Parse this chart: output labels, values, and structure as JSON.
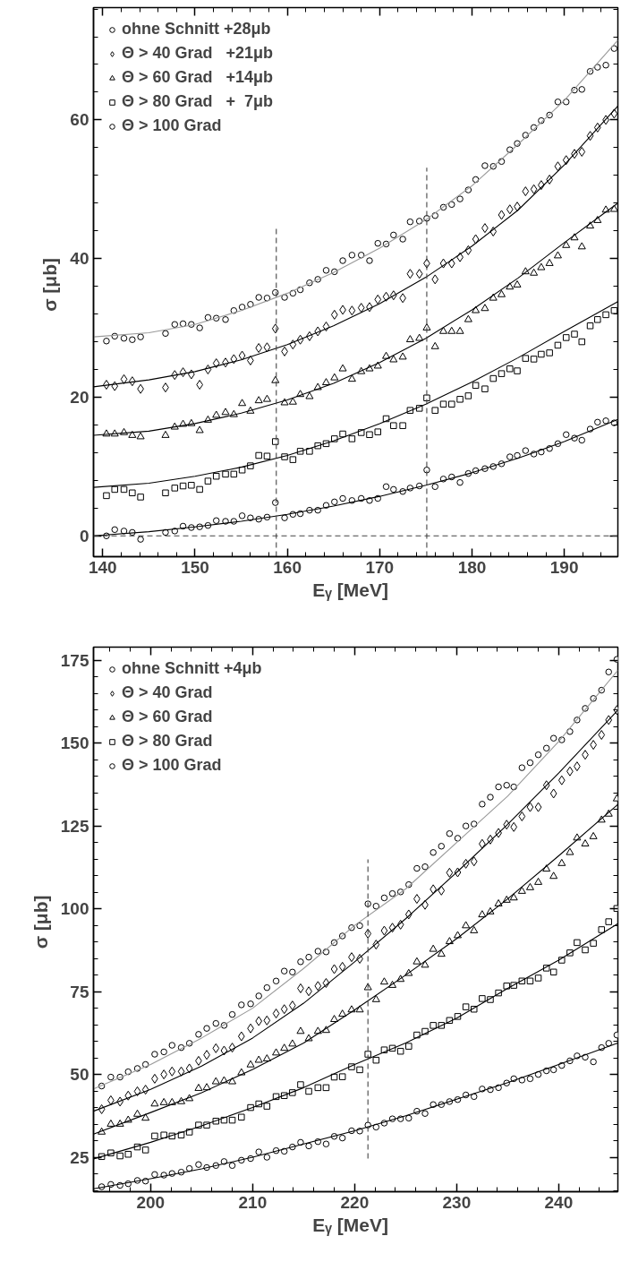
{
  "chart_data": [
    {
      "type": "scatter",
      "xlabel": "Eᵧ   [MeV]",
      "ylabel": "σ  [μb]",
      "xlim": [
        139,
        195.8
      ],
      "ylim": [
        -3,
        76.2
      ],
      "xticks": [
        140,
        150,
        160,
        170,
        180,
        190
      ],
      "yticks": [
        0,
        20,
        40,
        60
      ],
      "legend": "top left",
      "x": [
        140.4,
        141.3,
        142.3,
        143.2,
        144.1,
        146.8,
        147.8,
        148.7,
        149.6,
        150.5,
        151.4,
        152.3,
        153.3,
        154.2,
        155.1,
        156.0,
        156.9,
        157.8,
        158.7,
        159.7,
        160.6,
        161.4,
        162.4,
        163.3,
        164.2,
        165.1,
        166.0,
        167.0,
        168.0,
        168.9,
        169.8,
        170.7,
        171.5,
        172.5,
        173.3,
        174.3,
        175.1,
        176.0,
        176.9,
        177.8,
        178.7,
        179.6,
        180.4,
        181.4,
        182.3,
        183.2,
        184.1,
        184.9,
        185.8,
        186.7,
        187.5,
        188.4,
        189.3,
        190.2,
        191.1,
        191.9,
        192.8,
        193.6,
        194.5,
        195.4
      ],
      "ref_lines": [
        {
          "axis": "y",
          "value": 0,
          "line_style": "dashed",
          "color": "#444444"
        }
      ],
      "series": [
        {
          "name": "ohne Schnitt +28μb",
          "color": "#000000",
          "marker": "circle",
          "values": [
            28.1,
            28.8,
            28.5,
            28.3,
            28.7,
            29.2,
            30.5,
            30.6,
            30.5,
            30.0,
            31.5,
            31.4,
            31.2,
            32.5,
            33.0,
            33.4,
            34.4,
            34.3,
            35.1,
            34.4,
            35.0,
            35.5,
            36.5,
            37.0,
            38.3,
            38.1,
            39.7,
            40.5,
            40.5,
            39.7,
            42.2,
            42.1,
            43.4,
            42.8,
            45.3,
            45.4,
            45.8,
            46.2,
            47.4,
            47.8,
            48.6,
            49.9,
            51.4,
            53.4,
            53.3,
            54.0,
            55.7,
            56.6,
            57.8,
            58.9,
            59.9,
            60.7,
            62.6,
            62.6,
            64.3,
            64.4,
            67.0,
            67.6,
            67.9,
            70.3
          ]
        },
        {
          "name": "Θ > 40 Grad   +21μb",
          "color": "#000000",
          "marker": "diamond",
          "values": [
            21.8,
            21.6,
            22.6,
            22.3,
            21.2,
            21.4,
            23.2,
            23.6,
            23.3,
            21.8,
            24.0,
            24.9,
            25.0,
            25.5,
            26.0,
            25.3,
            27.1,
            27.2,
            29.9,
            26.6,
            27.6,
            28.3,
            28.8,
            29.5,
            30.2,
            31.9,
            32.6,
            32.5,
            32.9,
            33.0,
            34.1,
            34.5,
            34.7,
            34.3,
            37.8,
            37.8,
            39.3,
            37.0,
            39.3,
            39.3,
            40.2,
            41.2,
            42.8,
            44.4,
            43.9,
            46.3,
            47.1,
            47.5,
            49.7,
            50.0,
            50.6,
            51.4,
            53.3,
            54.2,
            55.1,
            55.4,
            57.7,
            58.9,
            60.0,
            60.9
          ]
        },
        {
          "name": "Θ > 60 Grad   +14μb",
          "color": "#000000",
          "marker": "triangle",
          "values": [
            14.7,
            14.7,
            14.9,
            14.5,
            14.3,
            14.5,
            15.7,
            16.1,
            16.2,
            15.2,
            16.7,
            17.4,
            17.8,
            17.5,
            19.1,
            18.0,
            19.5,
            19.7,
            22.4,
            19.2,
            19.3,
            20.4,
            20.1,
            21.4,
            22.1,
            22.8,
            24.1,
            22.6,
            23.7,
            24.1,
            24.5,
            25.9,
            25.4,
            25.8,
            28.3,
            28.5,
            30.0,
            27.3,
            29.5,
            29.5,
            29.5,
            31.2,
            32.5,
            32.8,
            34.3,
            34.8,
            35.9,
            36.2,
            38.1,
            37.9,
            38.7,
            39.3,
            40.4,
            41.9,
            43.0,
            41.7,
            44.7,
            45.5,
            47.0,
            47.1
          ]
        },
        {
          "name": "Θ > 80 Grad   +  7μb",
          "color": "#000000",
          "marker": "square",
          "values": [
            5.8,
            6.7,
            6.7,
            6.2,
            5.6,
            6.2,
            6.9,
            7.2,
            7.3,
            6.7,
            7.9,
            8.6,
            8.9,
            8.9,
            9.5,
            10.1,
            11.6,
            11.5,
            13.6,
            11.4,
            11.0,
            12.2,
            12.2,
            13.0,
            13.3,
            14.0,
            14.7,
            14.0,
            14.9,
            14.6,
            15.0,
            16.9,
            15.9,
            15.9,
            18.1,
            18.4,
            19.9,
            18.1,
            19.0,
            19.0,
            19.7,
            20.2,
            21.7,
            21.2,
            22.7,
            23.4,
            24.1,
            23.8,
            25.6,
            25.5,
            26.2,
            26.4,
            27.5,
            28.6,
            29.1,
            28.0,
            30.3,
            31.2,
            31.9,
            32.5
          ]
        },
        {
          "name": "Θ > 100 Grad",
          "color": "#000000",
          "marker": "circle",
          "values": [
            0.0,
            0.9,
            0.7,
            0.5,
            -0.5,
            0.5,
            0.7,
            1.4,
            1.2,
            1.3,
            1.5,
            2.2,
            2.1,
            2.1,
            2.9,
            2.6,
            2.4,
            2.7,
            4.8,
            2.6,
            3.1,
            3.2,
            3.7,
            3.7,
            4.4,
            4.9,
            5.4,
            5.1,
            5.4,
            5.1,
            5.4,
            7.1,
            6.7,
            6.4,
            6.9,
            7.2,
            9.5,
            7.1,
            8.2,
            8.5,
            7.7,
            9.0,
            9.4,
            9.7,
            10.0,
            10.4,
            11.4,
            11.6,
            12.3,
            11.8,
            12.1,
            12.6,
            13.3,
            14.6,
            14.1,
            13.8,
            15.4,
            16.4,
            16.6,
            16.3
          ]
        },
        {
          "type": "line",
          "color": "#999999",
          "x": [
            139,
            145,
            150,
            155,
            160,
            165,
            170,
            175,
            180,
            185,
            190,
            195.8
          ],
          "values": [
            28.7,
            29.3,
            30.5,
            32.5,
            35.0,
            38.0,
            41.5,
            45.6,
            50.5,
            56.5,
            62.8,
            71.5
          ]
        },
        {
          "type": "line",
          "color": "#000000",
          "x": [
            139,
            145,
            150,
            155,
            160,
            165,
            170,
            175,
            180,
            185,
            190,
            195.8
          ],
          "values": [
            21.5,
            22.5,
            23.7,
            25.4,
            27.6,
            30.3,
            33.5,
            37.3,
            41.8,
            47.0,
            53.5,
            62.0
          ]
        },
        {
          "type": "line",
          "color": "#000000",
          "x": [
            139,
            145,
            150,
            155,
            160,
            165,
            170,
            175,
            180,
            185,
            190,
            195.8
          ],
          "values": [
            14.5,
            15.1,
            16.2,
            17.7,
            19.6,
            22.0,
            25.0,
            28.5,
            32.6,
            37.2,
            42.3,
            48.0
          ]
        },
        {
          "type": "line",
          "color": "#000000",
          "x": [
            139,
            145,
            150,
            155,
            160,
            165,
            170,
            175,
            180,
            185,
            190,
            195.8
          ],
          "values": [
            7.0,
            7.6,
            8.6,
            9.9,
            11.6,
            13.7,
            16.2,
            19.0,
            22.2,
            25.7,
            29.5,
            33.8
          ]
        },
        {
          "type": "line",
          "color": "#000000",
          "x": [
            139,
            145,
            150,
            155,
            160,
            165,
            170,
            175,
            180,
            185,
            190,
            195.8
          ],
          "values": [
            0.0,
            0.6,
            1.3,
            2.1,
            3.1,
            4.3,
            5.7,
            7.3,
            9.1,
            11.2,
            13.6,
            16.8
          ]
        },
        {
          "type": "line",
          "color": "#444444",
          "line_style": "dashed",
          "x": [
            158.8,
            158.8
          ],
          "values": [
            -3,
            44.3
          ]
        },
        {
          "type": "line",
          "color": "#444444",
          "line_style": "dashed",
          "x": [
            175.1,
            175.1
          ],
          "values": [
            -3,
            53.1
          ]
        }
      ]
    },
    {
      "type": "scatter",
      "xlabel": "Eᵧ   [MeV]",
      "ylabel": "σ  [μb]",
      "xlim": [
        194.4,
        245.8
      ],
      "ylim": [
        14.6,
        179
      ],
      "xticks": [
        200,
        210,
        220,
        230,
        240
      ],
      "yticks": [
        25,
        50,
        75,
        100,
        125,
        150,
        175
      ],
      "legend": "top left",
      "x": [
        195.2,
        196.1,
        197.0,
        197.8,
        198.7,
        199.5,
        200.4,
        201.3,
        202.1,
        203.0,
        203.8,
        204.7,
        205.5,
        206.4,
        207.2,
        208.0,
        208.9,
        209.8,
        210.6,
        211.4,
        212.3,
        213.1,
        213.9,
        214.7,
        215.5,
        216.4,
        217.2,
        218.0,
        218.8,
        219.7,
        220.5,
        221.3,
        222.1,
        222.9,
        223.7,
        224.5,
        225.3,
        226.1,
        226.9,
        227.7,
        228.5,
        229.3,
        230.1,
        230.9,
        231.7,
        232.5,
        233.3,
        234.1,
        234.9,
        235.6,
        236.4,
        237.2,
        238.0,
        238.8,
        239.5,
        240.3,
        241.1,
        241.8,
        242.6,
        243.4,
        244.2,
        244.9,
        245.7
      ],
      "series": [
        {
          "name": "ohne Schnitt +4μb",
          "color": "#000000",
          "marker": "circle",
          "values": [
            46.5,
            49.2,
            49.2,
            50.8,
            51.8,
            53.0,
            56.1,
            56.8,
            58.8,
            58.1,
            59.4,
            62.1,
            63.9,
            65.4,
            64.8,
            68.1,
            71.0,
            71.3,
            73.7,
            76.2,
            78.2,
            81.2,
            80.9,
            84.0,
            85.4,
            87.2,
            87.0,
            89.8,
            91.8,
            94.3,
            94.9,
            101.5,
            100.8,
            103.3,
            104.6,
            105.1,
            107.3,
            112.2,
            112.7,
            117.0,
            118.9,
            122.7,
            121.3,
            125.0,
            125.6,
            131.6,
            133.7,
            136.8,
            137.3,
            136.8,
            142.6,
            144.1,
            146.5,
            148.5,
            151.5,
            151.0,
            153.5,
            157.0,
            160.5,
            163.5,
            166.0,
            171.5,
            175.3
          ]
        },
        {
          "name": "Θ > 40 Grad",
          "color": "#000000",
          "marker": "diamond",
          "values": [
            39.5,
            42.2,
            41.8,
            43.6,
            44.9,
            45.4,
            48.7,
            50.0,
            50.9,
            50.9,
            51.8,
            54.1,
            55.9,
            57.9,
            57.2,
            58.1,
            61.5,
            63.9,
            66.1,
            66.3,
            68.4,
            69.7,
            70.8,
            76.0,
            75.1,
            76.7,
            77.6,
            81.8,
            82.5,
            85.4,
            84.9,
            92.5,
            89.2,
            93.4,
            94.3,
            95.2,
            98.3,
            103.0,
            101.2,
            105.9,
            105.5,
            110.9,
            111.0,
            113.6,
            114.3,
            119.6,
            120.9,
            122.9,
            125.4,
            124.7,
            127.9,
            130.7,
            130.7,
            137.3,
            134.8,
            138.8,
            141.5,
            143.0,
            146.5,
            149.5,
            152.5,
            157.0,
            160.0
          ]
        },
        {
          "name": "Θ > 60 Grad",
          "color": "#000000",
          "marker": "triangle",
          "values": [
            32.6,
            35.0,
            35.0,
            36.2,
            38.0,
            36.8,
            41.1,
            41.5,
            41.5,
            41.8,
            42.7,
            45.8,
            46.0,
            47.8,
            48.1,
            47.8,
            50.5,
            52.9,
            54.3,
            54.7,
            56.5,
            57.9,
            59.2,
            63.0,
            60.8,
            63.0,
            63.3,
            66.6,
            68.2,
            69.5,
            69.5,
            76.2,
            72.6,
            77.9,
            76.9,
            78.7,
            80.5,
            84.0,
            83.0,
            87.8,
            86.3,
            90.1,
            91.9,
            94.9,
            93.4,
            98.2,
            99.1,
            101.5,
            102.6,
            103.3,
            105.3,
            106.4,
            108.0,
            112.0,
            109.8,
            113.7,
            117.0,
            121.4,
            119.6,
            121.8,
            126.8,
            128.6,
            133.2
          ]
        },
        {
          "name": "Θ > 80 Grad",
          "color": "#000000",
          "marker": "square",
          "values": [
            25.2,
            26.3,
            25.4,
            25.9,
            28.1,
            27.2,
            31.4,
            31.7,
            31.4,
            31.7,
            32.6,
            34.7,
            34.7,
            35.9,
            36.2,
            36.2,
            37.1,
            40.0,
            41.1,
            40.4,
            43.3,
            43.6,
            44.5,
            46.9,
            44.9,
            46.0,
            46.0,
            49.2,
            49.3,
            52.3,
            51.4,
            56.1,
            54.3,
            57.4,
            57.9,
            57.0,
            58.5,
            61.9,
            63.0,
            64.8,
            64.8,
            66.3,
            67.5,
            70.4,
            69.7,
            72.9,
            72.6,
            74.6,
            76.7,
            76.9,
            78.2,
            78.2,
            79.1,
            82.1,
            80.9,
            84.5,
            86.7,
            89.8,
            87.6,
            89.6,
            93.7,
            96.1,
            100.1
          ]
        },
        {
          "name": "Θ > 100 Grad",
          "color": "#000000",
          "marker": "circle",
          "values": [
            16.1,
            16.8,
            16.5,
            17.0,
            18.0,
            17.8,
            19.8,
            19.6,
            20.1,
            20.5,
            21.6,
            22.8,
            21.9,
            22.5,
            23.7,
            22.5,
            24.1,
            24.6,
            26.6,
            25.0,
            27.0,
            26.8,
            28.1,
            29.5,
            28.4,
            29.7,
            29.0,
            31.3,
            30.8,
            33.0,
            32.9,
            34.7,
            34.1,
            35.3,
            36.6,
            36.6,
            36.8,
            38.9,
            38.2,
            40.9,
            40.9,
            41.8,
            42.4,
            43.8,
            43.3,
            45.6,
            45.4,
            46.0,
            47.4,
            48.7,
            48.3,
            48.7,
            50.0,
            51.1,
            51.4,
            52.7,
            54.1,
            55.6,
            55.2,
            53.8,
            58.1,
            59.4,
            61.9
          ]
        },
        {
          "type": "line",
          "color": "#999999",
          "x": [
            194.4,
            200,
            205,
            210,
            215,
            220,
            225,
            230,
            235,
            240,
            245.8
          ],
          "values": [
            45.6,
            53.0,
            61.0,
            70.0,
            82.0,
            95.0,
            106.0,
            120.0,
            134.0,
            150.5,
            172.0
          ]
        },
        {
          "type": "line",
          "color": "#000000",
          "x": [
            194.4,
            200,
            205,
            210,
            215,
            220,
            225,
            230,
            235,
            240,
            245.8
          ],
          "values": [
            38.9,
            45.5,
            52.5,
            61.0,
            71.5,
            84.0,
            97.0,
            111.0,
            125.5,
            141.0,
            160.0
          ]
        },
        {
          "type": "line",
          "color": "#000000",
          "x": [
            194.4,
            200,
            205,
            210,
            215,
            220,
            225,
            230,
            235,
            240,
            245.8
          ],
          "values": [
            32.0,
            38.5,
            44.5,
            51.5,
            59.5,
            69.5,
            80.0,
            91.0,
            103.0,
            116.0,
            131.5
          ]
        },
        {
          "type": "line",
          "color": "#000000",
          "x": [
            194.4,
            200,
            205,
            210,
            215,
            220,
            225,
            230,
            235,
            240,
            245.8
          ],
          "values": [
            24.5,
            29.5,
            34.5,
            40.0,
            46.0,
            53.0,
            59.5,
            67.0,
            76.0,
            84.5,
            95.5
          ]
        },
        {
          "type": "line",
          "color": "#000000",
          "x": [
            194.4,
            200,
            205,
            210,
            215,
            220,
            225,
            230,
            235,
            240,
            245.8
          ],
          "values": [
            15.5,
            18.5,
            21.5,
            25.0,
            29.0,
            33.0,
            37.5,
            42.5,
            47.5,
            53.0,
            59.5
          ]
        },
        {
          "type": "line",
          "color": "#444444",
          "line_style": "dashed",
          "x": [
            221.3,
            221.3
          ],
          "values": [
            24.6,
            114.9
          ]
        }
      ]
    }
  ]
}
